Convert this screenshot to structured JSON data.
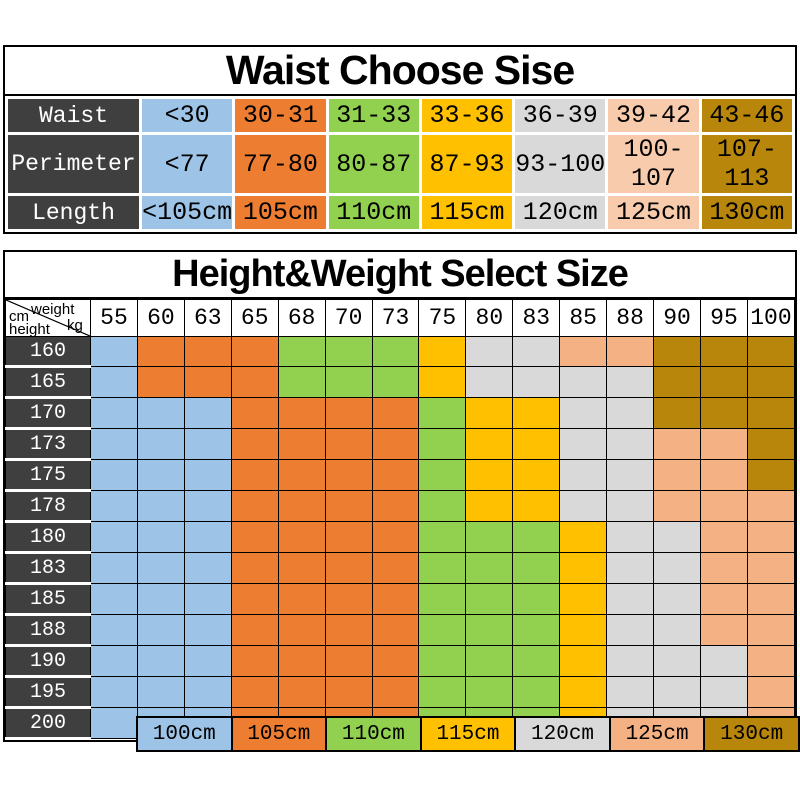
{
  "color_key": {
    "B": "#9DC3E6",
    "O": "#ED7D31",
    "G": "#92D050",
    "Y": "#FFC000",
    "E": "#D9D9D9",
    "P": "#F4B183",
    "PL": "#F8CBAD",
    "D": "#B8860B",
    "header_dark": "#3F3F3F",
    "text_on_dark": "#FFFFFF",
    "text_on_cells": "#000000"
  },
  "waist_table": {
    "title": "Waist Choose Sise",
    "rows": [
      {
        "label": "Waist",
        "cells": [
          {
            "text": "<30",
            "color": "B"
          },
          {
            "text": "30-31",
            "color": "O"
          },
          {
            "text": "31-33",
            "color": "G"
          },
          {
            "text": "33-36",
            "color": "Y"
          },
          {
            "text": "36-39",
            "color": "E"
          },
          {
            "text": "39-42",
            "color": "PL"
          },
          {
            "text": "43-46",
            "color": "D"
          }
        ]
      },
      {
        "label": "Perimeter",
        "cells": [
          {
            "text": "<77",
            "color": "B"
          },
          {
            "text": "77-80",
            "color": "O"
          },
          {
            "text": "80-87",
            "color": "G"
          },
          {
            "text": "87-93",
            "color": "Y"
          },
          {
            "text": "93-100",
            "color": "E"
          },
          {
            "text": "100-107",
            "color": "PL"
          },
          {
            "text": "107-113",
            "color": "D"
          }
        ]
      },
      {
        "label": "Length",
        "cells": [
          {
            "text": "<105cm",
            "color": "B"
          },
          {
            "text": "105cm",
            "color": "O"
          },
          {
            "text": "110cm",
            "color": "G"
          },
          {
            "text": "115cm",
            "color": "Y"
          },
          {
            "text": "120cm",
            "color": "E"
          },
          {
            "text": "125cm",
            "color": "PL"
          },
          {
            "text": "130cm",
            "color": "D"
          }
        ]
      }
    ]
  },
  "size_matrix": {
    "title": "Height&Weight Select Size",
    "corner": {
      "weight": "weight",
      "kg": "kg",
      "cm": "cm",
      "height": "height"
    },
    "weights": [
      "55",
      "60",
      "63",
      "65",
      "68",
      "70",
      "73",
      "75",
      "80",
      "83",
      "85",
      "88",
      "90",
      "95",
      "100"
    ],
    "rows": [
      {
        "height": "160",
        "cells": [
          "B",
          "O",
          "O",
          "O",
          "G",
          "G",
          "G",
          "Y",
          "E",
          "E",
          "P",
          "P",
          "D",
          "D",
          "D"
        ]
      },
      {
        "height": "165",
        "cells": [
          "B",
          "O",
          "O",
          "O",
          "G",
          "G",
          "G",
          "Y",
          "E",
          "E",
          "E",
          "E",
          "D",
          "D",
          "D"
        ]
      },
      {
        "height": "170",
        "cells": [
          "B",
          "B",
          "B",
          "O",
          "O",
          "O",
          "O",
          "G",
          "Y",
          "Y",
          "E",
          "E",
          "D",
          "D",
          "D"
        ]
      },
      {
        "height": "173",
        "cells": [
          "B",
          "B",
          "B",
          "O",
          "O",
          "O",
          "O",
          "G",
          "Y",
          "Y",
          "E",
          "E",
          "P",
          "P",
          "D"
        ]
      },
      {
        "height": "175",
        "cells": [
          "B",
          "B",
          "B",
          "O",
          "O",
          "O",
          "O",
          "G",
          "Y",
          "Y",
          "E",
          "E",
          "P",
          "P",
          "D"
        ]
      },
      {
        "height": "178",
        "cells": [
          "B",
          "B",
          "B",
          "O",
          "O",
          "O",
          "O",
          "G",
          "Y",
          "Y",
          "E",
          "E",
          "P",
          "P",
          "P"
        ]
      },
      {
        "height": "180",
        "cells": [
          "B",
          "B",
          "B",
          "O",
          "O",
          "O",
          "O",
          "G",
          "G",
          "G",
          "Y",
          "E",
          "E",
          "P",
          "P"
        ]
      },
      {
        "height": "183",
        "cells": [
          "B",
          "B",
          "B",
          "O",
          "O",
          "O",
          "O",
          "G",
          "G",
          "G",
          "Y",
          "E",
          "E",
          "P",
          "P"
        ]
      },
      {
        "height": "185",
        "cells": [
          "B",
          "B",
          "B",
          "O",
          "O",
          "O",
          "O",
          "G",
          "G",
          "G",
          "Y",
          "E",
          "E",
          "P",
          "P"
        ]
      },
      {
        "height": "188",
        "cells": [
          "B",
          "B",
          "B",
          "O",
          "O",
          "O",
          "O",
          "G",
          "G",
          "G",
          "Y",
          "E",
          "E",
          "P",
          "P"
        ]
      },
      {
        "height": "190",
        "cells": [
          "B",
          "B",
          "B",
          "O",
          "O",
          "O",
          "O",
          "G",
          "G",
          "G",
          "Y",
          "E",
          "E",
          "E",
          "P"
        ]
      },
      {
        "height": "195",
        "cells": [
          "B",
          "B",
          "B",
          "O",
          "O",
          "O",
          "O",
          "G",
          "G",
          "G",
          "Y",
          "E",
          "E",
          "E",
          "P"
        ]
      },
      {
        "height": "200",
        "cells": [
          "B",
          "B",
          "B",
          "O",
          "O",
          "O",
          "O",
          "G",
          "G",
          "G",
          "Y",
          "E",
          "E",
          "E",
          "P"
        ]
      }
    ]
  },
  "legend": [
    {
      "label": "100cm",
      "color": "B"
    },
    {
      "label": "105cm",
      "color": "O"
    },
    {
      "label": "110cm",
      "color": "G"
    },
    {
      "label": "115cm",
      "color": "Y"
    },
    {
      "label": "120cm",
      "color": "E"
    },
    {
      "label": "125cm",
      "color": "P"
    },
    {
      "label": "130cm",
      "color": "D"
    }
  ]
}
